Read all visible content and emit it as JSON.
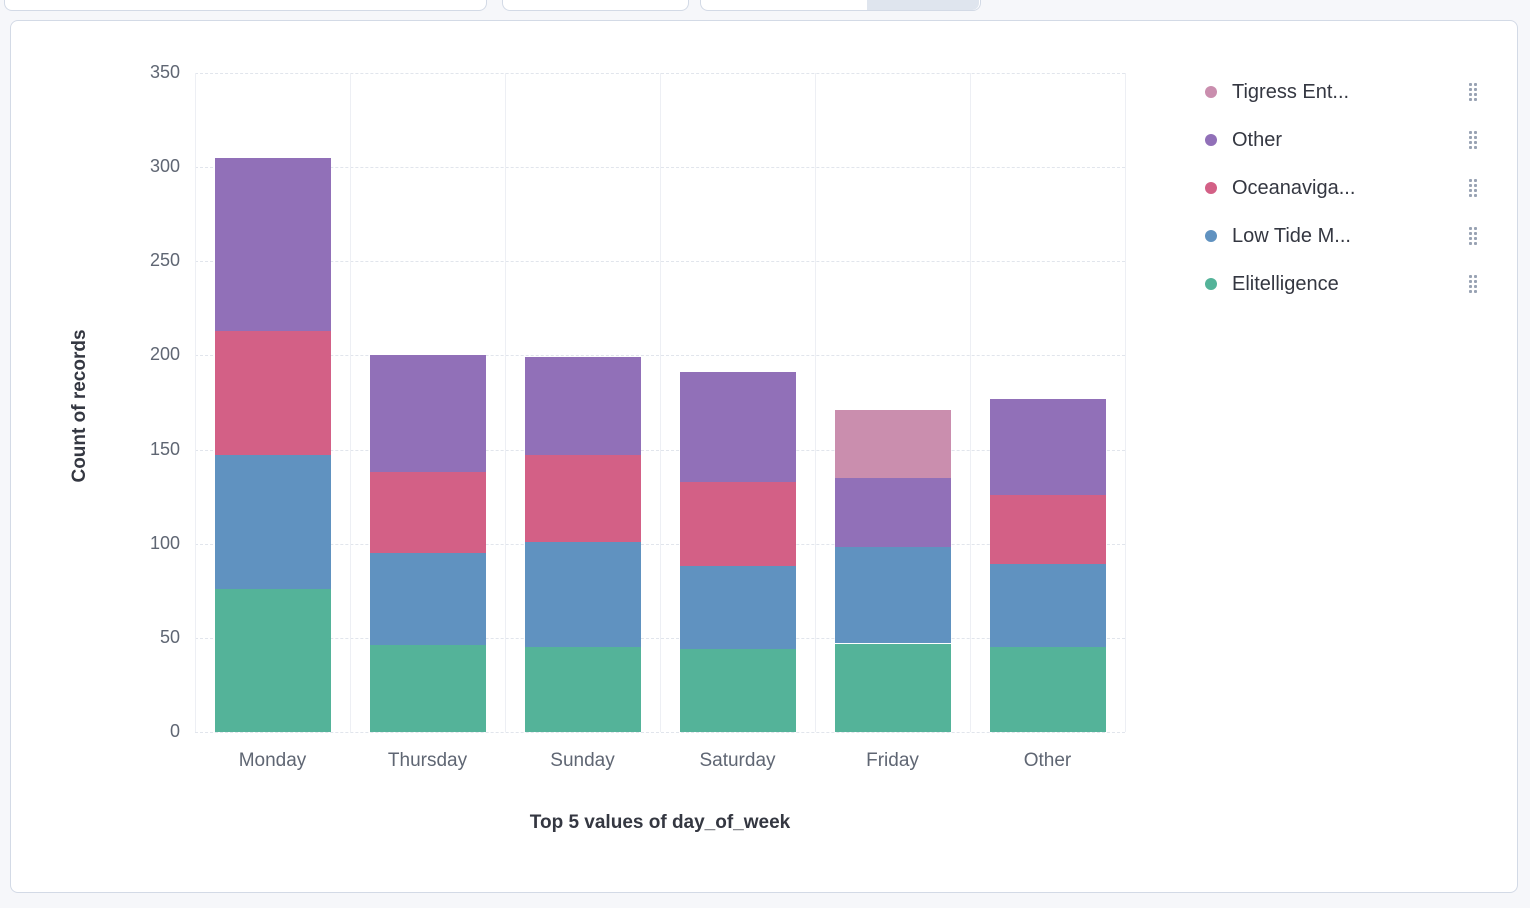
{
  "top_bar": {
    "note": "partially visible query and filter controls cut off at top edge"
  },
  "chart": {
    "y_axis_title": "Count of records",
    "x_axis_title": "Top 5 values of day_of_week",
    "y_ticks": [
      0,
      50,
      100,
      150,
      200,
      250,
      300,
      350
    ]
  },
  "legend": {
    "items": [
      {
        "label": "Tigress Ent...",
        "color": "#CA8EAE"
      },
      {
        "label": "Other",
        "color": "#9170B8"
      },
      {
        "label": "Oceanaviga...",
        "color": "#D36086"
      },
      {
        "label": "Low Tide M...",
        "color": "#6092C0"
      },
      {
        "label": "Elitelligence",
        "color": "#54B399"
      }
    ]
  },
  "chart_data": {
    "type": "bar",
    "stacked": true,
    "title": "",
    "xlabel": "Top 5 values of day_of_week",
    "ylabel": "Count of records",
    "ylim": [
      0,
      350
    ],
    "grid": true,
    "legend_position": "right",
    "categories": [
      "Monday",
      "Thursday",
      "Sunday",
      "Saturday",
      "Friday",
      "Other"
    ],
    "series": [
      {
        "name": "Elitelligence",
        "color": "#54B399",
        "values": [
          76,
          46,
          45,
          44,
          47,
          45
        ]
      },
      {
        "name": "Low Tide M...",
        "color": "#6092C0",
        "values": [
          71,
          49,
          56,
          44,
          51,
          44
        ]
      },
      {
        "name": "Oceanaviga...",
        "color": "#D36086",
        "values": [
          66,
          43,
          46,
          45,
          0,
          37
        ]
      },
      {
        "name": "Other",
        "color": "#9170B8",
        "values": [
          92,
          62,
          52,
          58,
          37,
          51
        ]
      },
      {
        "name": "Tigress Ent...",
        "color": "#CA8EAE",
        "values": [
          0,
          0,
          0,
          0,
          36,
          0
        ]
      }
    ],
    "totals": [
      305,
      200,
      199,
      191,
      171,
      177
    ]
  }
}
